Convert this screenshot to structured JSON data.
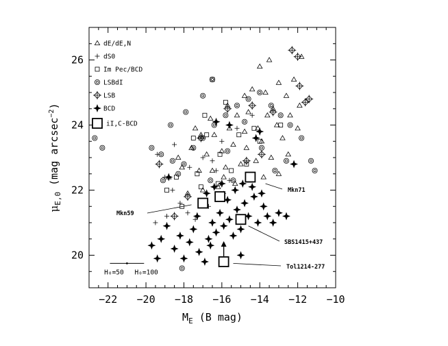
{
  "chart_data": {
    "type": "scatter",
    "title": "",
    "xlabel": "M_E (B mag)",
    "ylabel": "μ_E,0 (mag arcsec⁻²)",
    "xlim": [
      -23,
      -10
    ],
    "ylim": [
      19,
      27
    ],
    "x_ticks": [
      -22,
      -20,
      -18,
      -16,
      -14,
      -12,
      -10
    ],
    "y_ticks": [
      20,
      22,
      24,
      26
    ],
    "legend_position": "top-left",
    "series": [
      {
        "name": "dE/dE,N",
        "marker": "triangle",
        "points": [
          [
            -11.8,
            26.1
          ],
          [
            -12.2,
            25.4
          ],
          [
            -13.0,
            25.3
          ],
          [
            -13.5,
            26.0
          ],
          [
            -14.0,
            25.8
          ],
          [
            -14.4,
            25.1
          ],
          [
            -13.7,
            25.0
          ],
          [
            -12.6,
            24.9
          ],
          [
            -13.3,
            24.5
          ],
          [
            -14.6,
            24.4
          ],
          [
            -15.2,
            24.3
          ],
          [
            -12.4,
            24.3
          ],
          [
            -11.9,
            24.6
          ],
          [
            -13.1,
            24.0
          ],
          [
            -14.1,
            23.9
          ],
          [
            -14.8,
            23.8
          ],
          [
            -15.6,
            23.9
          ],
          [
            -16.4,
            23.7
          ],
          [
            -17.1,
            23.7
          ],
          [
            -12.8,
            23.6
          ],
          [
            -13.9,
            23.5
          ],
          [
            -14.7,
            23.3
          ],
          [
            -15.4,
            23.4
          ],
          [
            -16.0,
            23.2
          ],
          [
            -16.8,
            23.1
          ],
          [
            -17.6,
            23.3
          ],
          [
            -18.3,
            23.0
          ],
          [
            -12.5,
            23.1
          ],
          [
            -13.4,
            23.0
          ],
          [
            -14.2,
            22.9
          ],
          [
            -15.0,
            22.8
          ],
          [
            -15.8,
            22.7
          ],
          [
            -16.5,
            22.6
          ],
          [
            -17.2,
            22.6
          ],
          [
            -18.1,
            22.7
          ],
          [
            -18.8,
            22.4
          ],
          [
            -13.0,
            22.5
          ],
          [
            -13.8,
            22.4
          ],
          [
            -14.5,
            22.3
          ],
          [
            -15.3,
            22.2
          ],
          [
            -16.2,
            22.1
          ],
          [
            -17.0,
            22.0
          ],
          [
            -17.8,
            21.9
          ],
          [
            -14.8,
            24.9
          ],
          [
            -15.7,
            24.6
          ],
          [
            -16.6,
            24.2
          ],
          [
            -17.4,
            23.9
          ],
          [
            -12.0,
            23.9
          ],
          [
            -13.6,
            24.3
          ],
          [
            -15.9,
            22.4
          ]
        ]
      },
      {
        "name": "dS0",
        "marker": "plus",
        "points": [
          [
            -19.0,
            22.4
          ],
          [
            -18.6,
            22.0
          ],
          [
            -18.2,
            21.6
          ],
          [
            -17.8,
            21.3
          ],
          [
            -17.4,
            21.1
          ],
          [
            -16.7,
            21.5
          ],
          [
            -15.9,
            21.9
          ],
          [
            -16.3,
            22.6
          ],
          [
            -17.0,
            23.0
          ],
          [
            -17.7,
            22.7
          ],
          [
            -18.5,
            23.4
          ],
          [
            -19.4,
            23.1
          ],
          [
            -16.0,
            23.5
          ],
          [
            -15.2,
            23.9
          ],
          [
            -14.4,
            24.3
          ],
          [
            -17.2,
            23.6
          ],
          [
            -18.9,
            21.2
          ],
          [
            -19.5,
            21.0
          ],
          [
            -16.5,
            22.9
          ],
          [
            -15.6,
            22.3
          ]
        ]
      },
      {
        "name": "Im Pec/BCD",
        "marker": "square",
        "points": [
          [
            -16.5,
            25.4
          ],
          [
            -15.8,
            24.7
          ],
          [
            -16.9,
            24.3
          ],
          [
            -17.5,
            23.6
          ],
          [
            -15.1,
            23.7
          ],
          [
            -14.3,
            23.9
          ],
          [
            -16.1,
            23.1
          ],
          [
            -17.3,
            22.5
          ],
          [
            -18.4,
            22.4
          ],
          [
            -18.9,
            22.0
          ],
          [
            -17.1,
            22.1
          ],
          [
            -16.2,
            22.2
          ],
          [
            -15.5,
            22.6
          ],
          [
            -14.7,
            22.8
          ],
          [
            -14.0,
            23.5
          ],
          [
            -12.9,
            24.0
          ],
          [
            -18.1,
            21.5
          ],
          [
            -16.8,
            23.7
          ]
        ]
      },
      {
        "name": "LSBdI",
        "marker": "circle",
        "points": [
          [
            -22.7,
            23.6
          ],
          [
            -22.3,
            23.3
          ],
          [
            -19.7,
            23.3
          ],
          [
            -19.2,
            23.1
          ],
          [
            -18.6,
            22.9
          ],
          [
            -18.0,
            22.8
          ],
          [
            -17.5,
            23.3
          ],
          [
            -17.0,
            23.6
          ],
          [
            -16.4,
            24.0
          ],
          [
            -15.8,
            24.3
          ],
          [
            -15.2,
            24.6
          ],
          [
            -14.6,
            24.8
          ],
          [
            -14.0,
            25.0
          ],
          [
            -13.4,
            24.6
          ],
          [
            -12.9,
            24.3
          ],
          [
            -12.4,
            24.0
          ],
          [
            -11.8,
            23.6
          ],
          [
            -11.3,
            22.9
          ],
          [
            -11.1,
            22.6
          ],
          [
            -16.5,
            25.4
          ],
          [
            -17.0,
            24.9
          ],
          [
            -13.9,
            23.3
          ],
          [
            -13.2,
            22.6
          ],
          [
            -12.6,
            22.9
          ],
          [
            -15.4,
            22.3
          ],
          [
            -16.6,
            22.3
          ],
          [
            -18.3,
            22.5
          ],
          [
            -19.1,
            22.3
          ],
          [
            -18.1,
            19.6
          ],
          [
            -17.9,
            24.4
          ],
          [
            -14.8,
            24.1
          ],
          [
            -15.7,
            23.2
          ],
          [
            -18.7,
            24.0
          ]
        ]
      },
      {
        "name": "LSB",
        "marker": "diamond-plus",
        "points": [
          [
            -12.3,
            26.3
          ],
          [
            -12.0,
            26.1
          ],
          [
            -11.9,
            25.2
          ],
          [
            -11.6,
            24.7
          ],
          [
            -11.4,
            24.8
          ],
          [
            -13.3,
            24.4
          ],
          [
            -14.4,
            24.6
          ],
          [
            -15.7,
            24.5
          ],
          [
            -17.1,
            23.6
          ],
          [
            -19.3,
            22.8
          ],
          [
            -17.8,
            21.8
          ],
          [
            -18.5,
            21.2
          ],
          [
            -14.7,
            22.9
          ],
          [
            -13.9,
            23.1
          ]
        ]
      },
      {
        "name": "BCD",
        "marker": "star4",
        "points": [
          [
            -19.7,
            20.3
          ],
          [
            -19.4,
            19.9
          ],
          [
            -19.2,
            20.5
          ],
          [
            -18.9,
            20.9
          ],
          [
            -18.5,
            20.2
          ],
          [
            -18.2,
            20.6
          ],
          [
            -18.0,
            19.9
          ],
          [
            -17.7,
            20.4
          ],
          [
            -17.5,
            20.8
          ],
          [
            -17.2,
            20.1
          ],
          [
            -16.9,
            19.8
          ],
          [
            -16.7,
            20.5
          ],
          [
            -16.5,
            21.0
          ],
          [
            -16.3,
            20.7
          ],
          [
            -16.1,
            21.3
          ],
          [
            -15.9,
            20.9
          ],
          [
            -15.6,
            21.1
          ],
          [
            -15.4,
            20.6
          ],
          [
            -15.2,
            21.4
          ],
          [
            -15.0,
            20.8
          ],
          [
            -14.8,
            21.6
          ],
          [
            -14.6,
            21.2
          ],
          [
            -14.3,
            21.8
          ],
          [
            -14.1,
            21.0
          ],
          [
            -13.8,
            21.5
          ],
          [
            -13.6,
            21.2
          ],
          [
            -13.3,
            21.0
          ],
          [
            -13.0,
            21.3
          ],
          [
            -12.6,
            21.2
          ],
          [
            -17.3,
            21.2
          ],
          [
            -17.0,
            21.6
          ],
          [
            -16.8,
            21.9
          ],
          [
            -16.4,
            22.1
          ],
          [
            -16.0,
            22.2
          ],
          [
            -15.7,
            21.7
          ],
          [
            -15.3,
            22.0
          ],
          [
            -14.9,
            22.2
          ],
          [
            -14.4,
            22.1
          ],
          [
            -13.9,
            21.9
          ],
          [
            -14.2,
            23.6
          ],
          [
            -15.6,
            24.0
          ],
          [
            -16.3,
            24.1
          ],
          [
            -14.0,
            23.8
          ],
          [
            -12.2,
            22.8
          ],
          [
            -18.8,
            22.4
          ],
          [
            -15.0,
            20.0
          ],
          [
            -16.6,
            20.3
          ]
        ]
      },
      {
        "name": "iI,C-BCD",
        "marker": "big-square",
        "points": [
          [
            -17.0,
            21.6
          ],
          [
            -16.1,
            21.8
          ],
          [
            -14.5,
            22.4
          ],
          [
            -15.0,
            21.1
          ],
          [
            -15.9,
            19.8
          ]
        ]
      }
    ],
    "annotations": [
      {
        "text": "Mkn71",
        "target": [
          -14.5,
          22.4
        ]
      },
      {
        "text": "Mkn59",
        "target": [
          -17.0,
          21.6
        ]
      },
      {
        "text": "SBS1415+437",
        "target": [
          -15.0,
          21.1
        ]
      },
      {
        "text": "Tol1214-277",
        "target": [
          -15.9,
          19.8
        ]
      }
    ],
    "hubble_bar": {
      "left_label": "H₀=50",
      "right_label": "H₀=100"
    }
  }
}
